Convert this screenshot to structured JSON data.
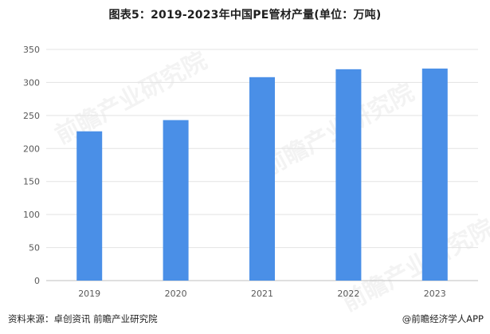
{
  "chart_data": {
    "type": "bar",
    "title": "图表5：2019-2023年中国PE管材产量(单位：万吨)",
    "categories": [
      "2019",
      "2020",
      "2021",
      "2022",
      "2023"
    ],
    "values": [
      226,
      243,
      308,
      320,
      321
    ],
    "ylim": [
      0,
      350
    ],
    "yticks": [
      0,
      50,
      100,
      150,
      200,
      250,
      300,
      350
    ],
    "xlabel": "",
    "ylabel": "",
    "grid": true,
    "legend": "none",
    "bar_color": "#4a8fe7"
  },
  "footer": {
    "source": "资料来源：卓创资讯 前瞻产业研究院",
    "credit": "@前瞻经济学人APP"
  },
  "watermark": {
    "text": "前瞻产业研究院"
  }
}
